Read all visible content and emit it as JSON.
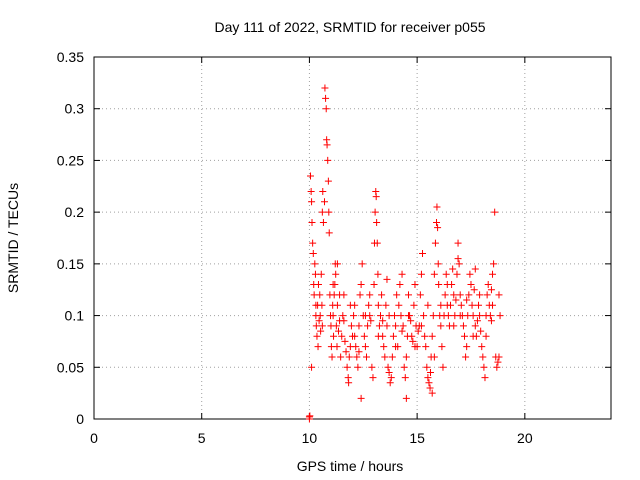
{
  "chart_data": {
    "type": "scatter",
    "title": "Day 111 of 2022, SRMTID for receiver p055",
    "xlabel": "GPS time / hours",
    "ylabel": "SRMTID / TECUs",
    "xlim": [
      0,
      24
    ],
    "ylim": [
      0,
      0.35
    ],
    "xticks": [
      0,
      5,
      10,
      15,
      20
    ],
    "xtick_labels": [
      "0",
      "5",
      "10",
      "15",
      "20"
    ],
    "yticks": [
      0,
      0.05,
      0.1,
      0.15,
      0.2,
      0.25,
      0.3,
      0.35
    ],
    "ytick_labels": [
      "0",
      "0.05",
      "0.1",
      "0.15",
      "0.2",
      "0.25",
      "0.3",
      "0.35"
    ],
    "grid": true,
    "marker": "plus",
    "color": "#ff0000",
    "series": [
      {
        "name": "SRMTID",
        "points": [
          [
            10.0,
            0.002
          ],
          [
            10.0,
            0.0
          ],
          [
            10.02,
            0.003
          ],
          [
            10.05,
            0.235
          ],
          [
            10.08,
            0.22
          ],
          [
            10.1,
            0.21
          ],
          [
            10.12,
            0.19
          ],
          [
            10.15,
            0.17
          ],
          [
            10.18,
            0.16
          ],
          [
            10.2,
            0.13
          ],
          [
            10.22,
            0.12
          ],
          [
            10.25,
            0.15
          ],
          [
            10.28,
            0.14
          ],
          [
            10.3,
            0.1
          ],
          [
            10.32,
            0.09
          ],
          [
            10.35,
            0.08
          ],
          [
            10.38,
            0.11
          ],
          [
            10.4,
            0.07
          ],
          [
            10.42,
            0.13
          ],
          [
            10.45,
            0.095
          ],
          [
            10.48,
            0.12
          ],
          [
            10.5,
            0.1
          ],
          [
            10.52,
            0.085
          ],
          [
            10.55,
            0.14
          ],
          [
            10.58,
            0.11
          ],
          [
            10.6,
            0.2
          ],
          [
            10.62,
            0.22
          ],
          [
            10.65,
            0.19
          ],
          [
            10.7,
            0.21
          ],
          [
            10.72,
            0.32
          ],
          [
            10.75,
            0.31
          ],
          [
            10.78,
            0.3
          ],
          [
            10.8,
            0.27
          ],
          [
            10.82,
            0.265
          ],
          [
            10.85,
            0.25
          ],
          [
            10.88,
            0.23
          ],
          [
            10.9,
            0.2
          ],
          [
            10.92,
            0.18
          ],
          [
            10.95,
            0.12
          ],
          [
            10.98,
            0.1
          ],
          [
            11.0,
            0.09
          ],
          [
            11.02,
            0.07
          ],
          [
            11.05,
            0.06
          ],
          [
            11.08,
            0.11
          ],
          [
            11.1,
            0.1
          ],
          [
            11.12,
            0.08
          ],
          [
            11.15,
            0.12
          ],
          [
            11.18,
            0.13
          ],
          [
            11.2,
            0.15
          ],
          [
            11.22,
            0.14
          ],
          [
            11.25,
            0.09
          ],
          [
            11.28,
            0.07
          ],
          [
            11.3,
            0.11
          ],
          [
            11.35,
            0.085
          ],
          [
            11.4,
            0.095
          ],
          [
            11.45,
            0.06
          ],
          [
            11.5,
            0.08
          ],
          [
            11.55,
            0.1
          ],
          [
            11.6,
            0.12
          ],
          [
            11.65,
            0.075
          ],
          [
            11.7,
            0.065
          ],
          [
            11.75,
            0.05
          ],
          [
            11.8,
            0.04
          ],
          [
            11.82,
            0.035
          ],
          [
            11.85,
            0.06
          ],
          [
            11.9,
            0.07
          ],
          [
            11.95,
            0.09
          ],
          [
            12.0,
            0.08
          ],
          [
            12.05,
            0.1
          ],
          [
            12.1,
            0.11
          ],
          [
            12.15,
            0.07
          ],
          [
            12.2,
            0.06
          ],
          [
            12.25,
            0.05
          ],
          [
            12.3,
            0.09
          ],
          [
            12.35,
            0.12
          ],
          [
            12.4,
            0.13
          ],
          [
            12.45,
            0.15
          ],
          [
            12.5,
            0.1
          ],
          [
            12.55,
            0.08
          ],
          [
            12.6,
            0.07
          ],
          [
            12.65,
            0.06
          ],
          [
            12.7,
            0.09
          ],
          [
            12.75,
            0.11
          ],
          [
            12.8,
            0.1
          ],
          [
            12.85,
            0.095
          ],
          [
            12.9,
            0.05
          ],
          [
            12.95,
            0.04
          ],
          [
            13.0,
            0.13
          ],
          [
            13.02,
            0.17
          ],
          [
            13.05,
            0.2
          ],
          [
            13.08,
            0.22
          ],
          [
            13.1,
            0.215
          ],
          [
            13.12,
            0.19
          ],
          [
            13.15,
            0.17
          ],
          [
            13.18,
            0.14
          ],
          [
            13.2,
            0.11
          ],
          [
            13.25,
            0.09
          ],
          [
            13.3,
            0.1
          ],
          [
            13.35,
            0.12
          ],
          [
            13.4,
            0.08
          ],
          [
            13.45,
            0.07
          ],
          [
            13.5,
            0.06
          ],
          [
            13.55,
            0.11
          ],
          [
            13.6,
            0.09
          ],
          [
            13.65,
            0.05
          ],
          [
            13.7,
            0.045
          ],
          [
            13.75,
            0.035
          ],
          [
            13.8,
            0.04
          ],
          [
            13.85,
            0.06
          ],
          [
            13.9,
            0.08
          ],
          [
            13.95,
            0.1
          ],
          [
            14.0,
            0.09
          ],
          [
            14.05,
            0.12
          ],
          [
            14.1,
            0.07
          ],
          [
            14.15,
            0.11
          ],
          [
            14.2,
            0.13
          ],
          [
            14.25,
            0.1
          ],
          [
            14.3,
            0.14
          ],
          [
            14.35,
            0.09
          ],
          [
            14.4,
            0.05
          ],
          [
            14.45,
            0.04
          ],
          [
            14.5,
            0.06
          ],
          [
            14.55,
            0.08
          ],
          [
            14.6,
            0.12
          ],
          [
            14.65,
            0.1
          ],
          [
            14.7,
            0.095
          ],
          [
            14.75,
            0.08
          ],
          [
            14.8,
            0.075
          ],
          [
            14.85,
            0.11
          ],
          [
            14.9,
            0.13
          ],
          [
            14.95,
            0.09
          ],
          [
            15.0,
            0.07
          ],
          [
            15.05,
            0.085
          ],
          [
            15.1,
            0.09
          ],
          [
            15.15,
            0.12
          ],
          [
            15.2,
            0.14
          ],
          [
            15.25,
            0.16
          ],
          [
            15.3,
            0.1
          ],
          [
            15.35,
            0.08
          ],
          [
            15.4,
            0.07
          ],
          [
            15.45,
            0.05
          ],
          [
            15.5,
            0.04
          ],
          [
            15.55,
            0.035
          ],
          [
            15.6,
            0.03
          ],
          [
            15.62,
            0.045
          ],
          [
            15.65,
            0.06
          ],
          [
            15.7,
            0.08
          ],
          [
            15.75,
            0.1
          ],
          [
            15.8,
            0.14
          ],
          [
            15.85,
            0.17
          ],
          [
            15.9,
            0.19
          ],
          [
            15.92,
            0.205
          ],
          [
            15.95,
            0.185
          ],
          [
            15.98,
            0.15
          ],
          [
            16.0,
            0.13
          ],
          [
            16.05,
            0.1
          ],
          [
            16.1,
            0.09
          ],
          [
            16.15,
            0.07
          ],
          [
            16.2,
            0.05
          ],
          [
            16.25,
            0.1
          ],
          [
            16.3,
            0.12
          ],
          [
            16.35,
            0.14
          ],
          [
            16.4,
            0.11
          ],
          [
            16.45,
            0.1
          ],
          [
            16.5,
            0.09
          ],
          [
            16.55,
            0.11
          ],
          [
            16.6,
            0.13
          ],
          [
            16.65,
            0.145
          ],
          [
            16.7,
            0.12
          ],
          [
            16.75,
            0.1
          ],
          [
            16.8,
            0.115
          ],
          [
            16.85,
            0.14
          ],
          [
            16.9,
            0.17
          ],
          [
            16.95,
            0.15
          ],
          [
            17.0,
            0.12
          ],
          [
            17.05,
            0.11
          ],
          [
            17.1,
            0.1
          ],
          [
            17.15,
            0.09
          ],
          [
            17.2,
            0.08
          ],
          [
            17.25,
            0.06
          ],
          [
            17.3,
            0.07
          ],
          [
            17.35,
            0.1
          ],
          [
            17.4,
            0.12
          ],
          [
            17.45,
            0.14
          ],
          [
            17.5,
            0.13
          ],
          [
            17.55,
            0.11
          ],
          [
            17.6,
            0.1
          ],
          [
            17.65,
            0.125
          ],
          [
            17.7,
            0.09
          ],
          [
            17.75,
            0.08
          ],
          [
            17.8,
            0.095
          ],
          [
            17.85,
            0.11
          ],
          [
            17.9,
            0.1
          ],
          [
            17.95,
            0.085
          ],
          [
            18.0,
            0.07
          ],
          [
            18.05,
            0.06
          ],
          [
            18.1,
            0.05
          ],
          [
            18.15,
            0.04
          ],
          [
            18.2,
            0.08
          ],
          [
            18.25,
            0.12
          ],
          [
            18.3,
            0.13
          ],
          [
            18.35,
            0.11
          ],
          [
            18.4,
            0.1
          ],
          [
            18.45,
            0.095
          ],
          [
            18.5,
            0.14
          ],
          [
            18.55,
            0.15
          ],
          [
            18.6,
            0.2
          ],
          [
            18.65,
            0.06
          ],
          [
            18.7,
            0.05
          ],
          [
            18.75,
            0.055
          ],
          [
            18.8,
            0.06
          ],
          [
            18.85,
            0.1
          ],
          [
            10.1,
            0.05
          ],
          [
            10.3,
            0.11
          ],
          [
            10.6,
            0.09
          ],
          [
            11.1,
            0.13
          ],
          [
            11.4,
            0.12
          ],
          [
            11.6,
            0.095
          ],
          [
            11.9,
            0.11
          ],
          [
            12.1,
            0.08
          ],
          [
            12.3,
            0.065
          ],
          [
            12.6,
            0.1
          ],
          [
            12.8,
            0.12
          ],
          [
            13.2,
            0.08
          ],
          [
            13.4,
            0.095
          ],
          [
            13.7,
            0.1
          ],
          [
            14.0,
            0.07
          ],
          [
            14.3,
            0.085
          ],
          [
            14.6,
            0.1
          ],
          [
            14.9,
            0.07
          ],
          [
            15.2,
            0.09
          ],
          [
            15.5,
            0.11
          ],
          [
            15.8,
            0.06
          ],
          [
            16.1,
            0.11
          ],
          [
            16.4,
            0.13
          ],
          [
            16.7,
            0.09
          ],
          [
            17.0,
            0.1
          ],
          [
            17.3,
            0.115
          ],
          [
            17.6,
            0.08
          ],
          [
            17.9,
            0.12
          ],
          [
            18.2,
            0.1
          ],
          [
            18.5,
            0.11
          ],
          [
            18.8,
            0.12
          ],
          [
            14.5,
            0.02
          ],
          [
            15.7,
            0.025
          ],
          [
            12.4,
            0.02
          ],
          [
            11.3,
            0.15
          ],
          [
            13.6,
            0.135
          ],
          [
            16.9,
            0.155
          ],
          [
            17.7,
            0.145
          ],
          [
            18.45,
            0.125
          ]
        ]
      }
    ]
  }
}
